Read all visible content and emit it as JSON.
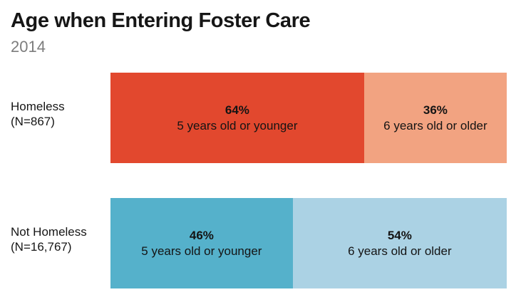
{
  "header": {
    "title": "Age when Entering Foster Care",
    "subtitle": "2014"
  },
  "colors": {
    "homeless_younger": "#e2482e",
    "homeless_older": "#f2a381",
    "not_homeless_younger": "#55b1cb",
    "not_homeless_older": "#abd2e4",
    "title_text": "#161616",
    "subtitle_text": "#7d7d7d",
    "bar_text": "#141414"
  },
  "chart_data": {
    "type": "bar",
    "variant": "horizontal-stacked-100percent",
    "title": "Age when Entering Foster Care",
    "subtitle": "2014",
    "categories": [
      "Homeless (N=867)",
      "Not Homeless (N=16,767)"
    ],
    "series": [
      {
        "name": "5 years old or younger",
        "values": [
          64,
          46
        ],
        "colors": [
          "#e2482e",
          "#55b1cb"
        ]
      },
      {
        "name": "6 years old or older",
        "values": [
          36,
          54
        ],
        "colors": [
          "#f2a381",
          "#abd2e4"
        ]
      }
    ],
    "value_unit": "%",
    "xlim": [
      0,
      100
    ],
    "grid": false,
    "legend": "labels-inside-segments",
    "data_labels": [
      "64% 5 years old or younger",
      "36% 6 years old or older",
      "46% 5 years old or younger",
      "54% 6 years old or older"
    ]
  },
  "rows": [
    {
      "label_line1": "Homeless",
      "label_line2": "(N=867)",
      "segments": [
        {
          "pct": "64%",
          "label": "5 years old or younger",
          "value": 64,
          "color": "#e2482e"
        },
        {
          "pct": "36%",
          "label": "6 years old or older",
          "value": 36,
          "color": "#f2a381"
        }
      ]
    },
    {
      "label_line1": "Not Homeless",
      "label_line2": "(N=16,767)",
      "segments": [
        {
          "pct": "46%",
          "label": "5 years old or younger",
          "value": 46,
          "color": "#55b1cb"
        },
        {
          "pct": "54%",
          "label": "6 years old or older",
          "value": 54,
          "color": "#abd2e4"
        }
      ]
    }
  ]
}
